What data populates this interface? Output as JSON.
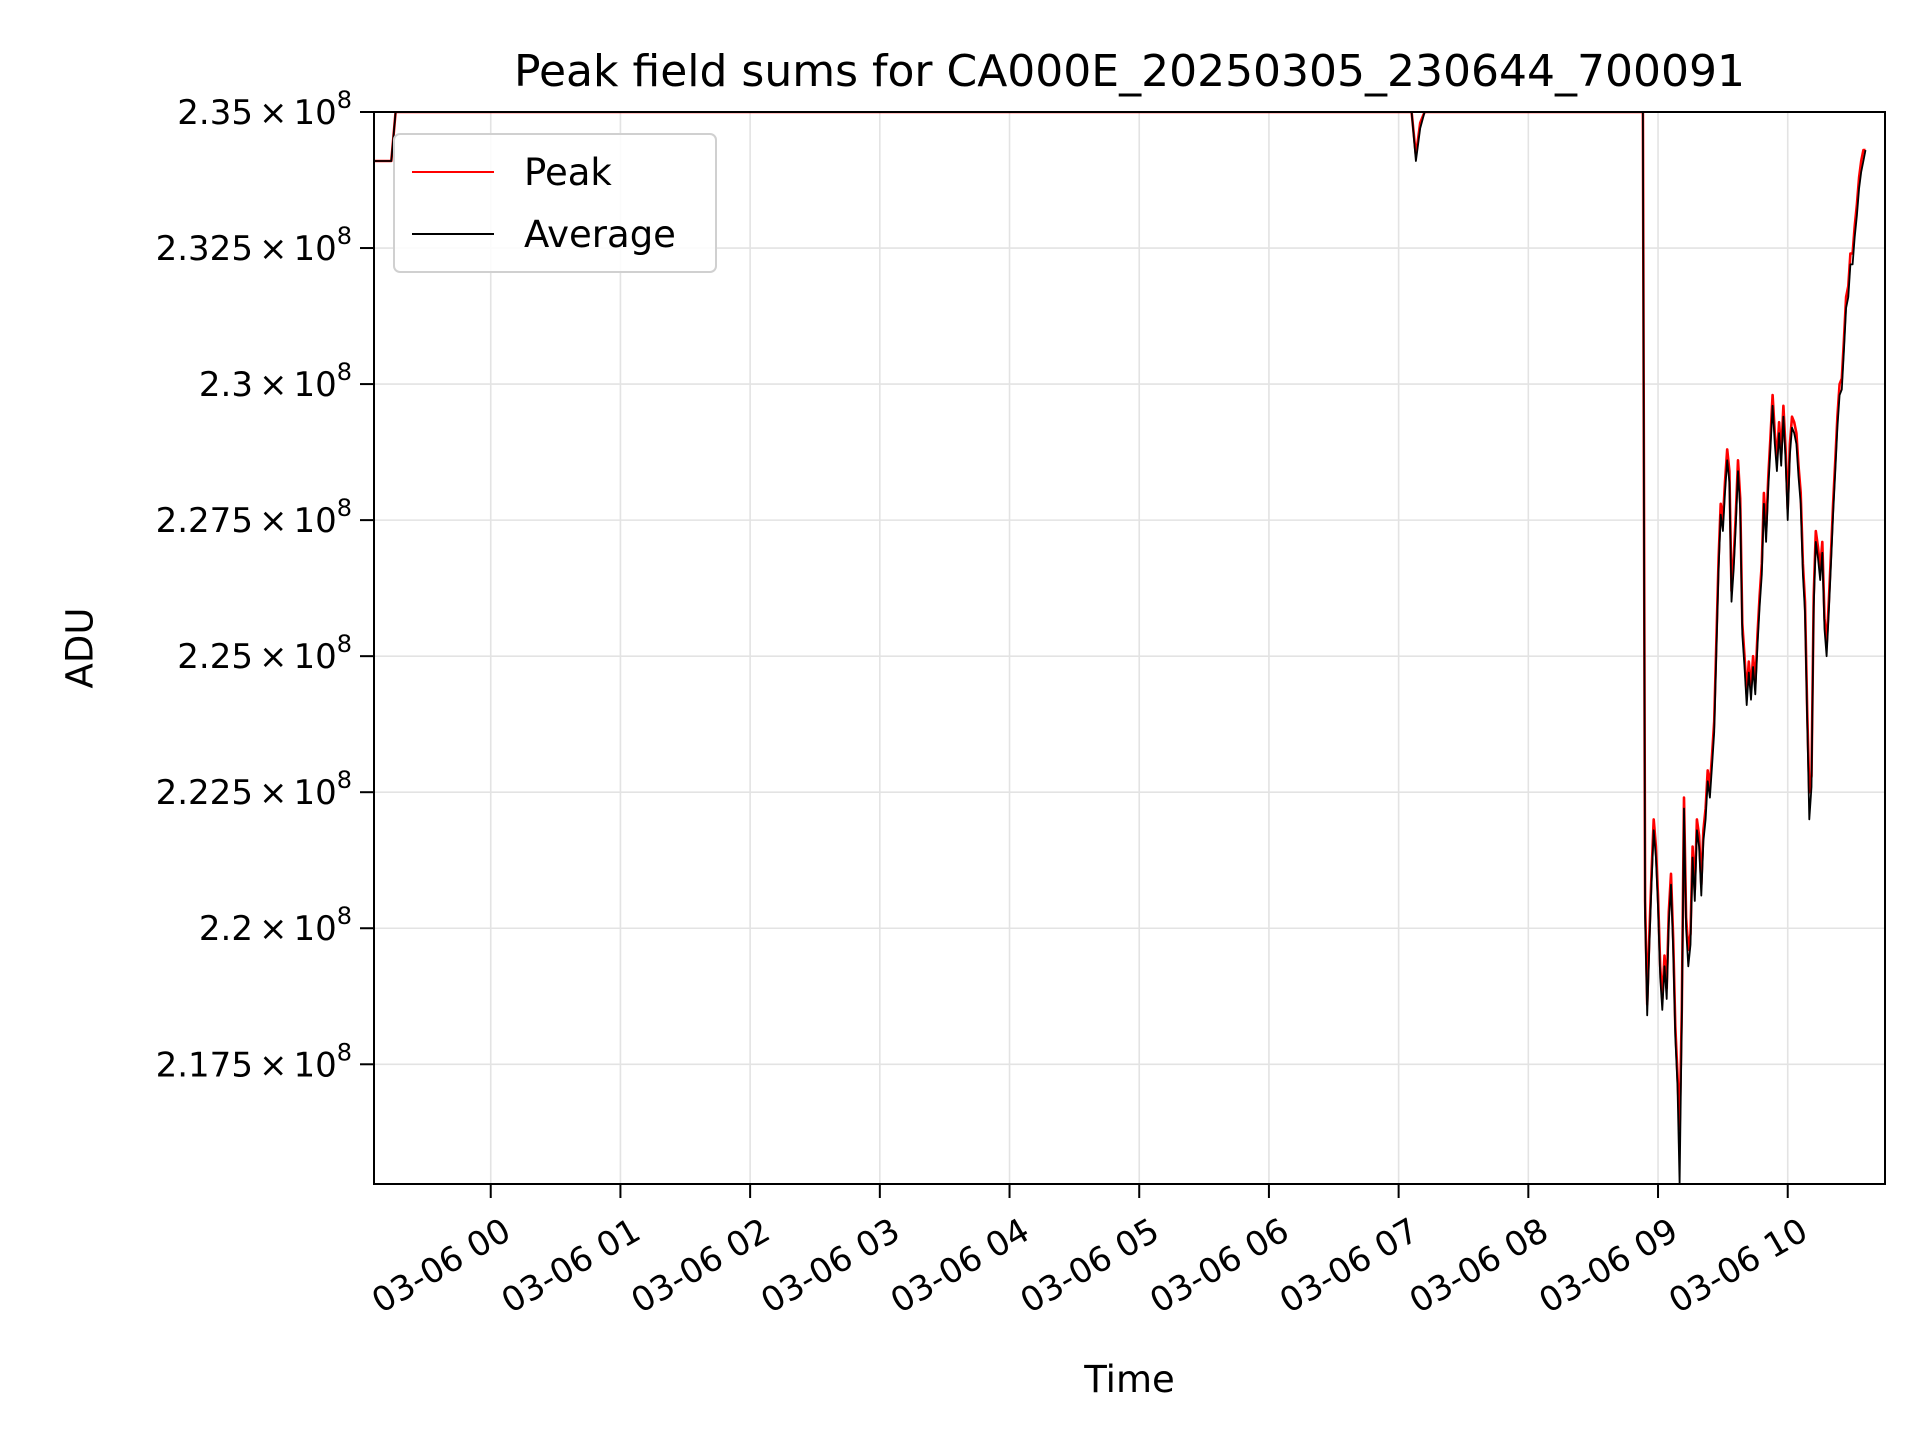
{
  "chart_data": {
    "type": "line",
    "title": "Peak field sums for CA000E_20250305_230644_700091",
    "xlabel": "Time",
    "ylabel": "ADU",
    "x_type": "time",
    "xlim": [
      "2025-03-05 23:06",
      "2025-03-06 10:45"
    ],
    "ylim": [
      215300000,
      235000000
    ],
    "grid": true,
    "legend_position": "top-left",
    "x_ticks": [
      {
        "value": "2025-03-06 00:00",
        "label": "03-06 00"
      },
      {
        "value": "2025-03-06 01:00",
        "label": "03-06 01"
      },
      {
        "value": "2025-03-06 02:00",
        "label": "03-06 02"
      },
      {
        "value": "2025-03-06 03:00",
        "label": "03-06 03"
      },
      {
        "value": "2025-03-06 04:00",
        "label": "03-06 04"
      },
      {
        "value": "2025-03-06 05:00",
        "label": "03-06 05"
      },
      {
        "value": "2025-03-06 06:00",
        "label": "03-06 06"
      },
      {
        "value": "2025-03-06 07:00",
        "label": "03-06 07"
      },
      {
        "value": "2025-03-06 08:00",
        "label": "03-06 08"
      },
      {
        "value": "2025-03-06 09:00",
        "label": "03-06 09"
      },
      {
        "value": "2025-03-06 10:00",
        "label": "03-06 10"
      }
    ],
    "y_ticks": [
      {
        "value": 217500000,
        "mantissa": "2.175"
      },
      {
        "value": 220000000,
        "mantissa": "2.2"
      },
      {
        "value": 222500000,
        "mantissa": "2.225"
      },
      {
        "value": 225000000,
        "mantissa": "2.25"
      },
      {
        "value": 227500000,
        "mantissa": "2.275"
      },
      {
        "value": 230000000,
        "mantissa": "2.3"
      },
      {
        "value": 232500000,
        "mantissa": "2.325"
      },
      {
        "value": 235000000,
        "mantissa": "2.35"
      }
    ],
    "y_tick_suffix": {
      "times": "×",
      "base": "10",
      "exponent": "8"
    },
    "series": [
      {
        "name": "Peak",
        "color": "#ff0000",
        "points": [
          [
            "2025-03-05 23:06",
            234100000
          ],
          [
            "2025-03-05 23:14",
            234100000
          ],
          [
            "2025-03-05 23:16",
            235000000
          ],
          [
            "2025-03-06 06:59",
            235000000
          ],
          [
            "2025-03-06 07:06",
            235000000
          ],
          [
            "2025-03-06 07:08",
            234200000
          ],
          [
            "2025-03-06 07:10",
            234800000
          ],
          [
            "2025-03-06 07:12",
            235000000
          ],
          [
            "2025-03-06 08:53",
            235000000
          ],
          [
            "2025-03-06 08:54",
            220500000
          ],
          [
            "2025-03-06 08:55",
            218600000
          ],
          [
            "2025-03-06 08:56",
            219900000
          ],
          [
            "2025-03-06 08:57",
            221000000
          ],
          [
            "2025-03-06 08:58",
            222000000
          ],
          [
            "2025-03-06 08:59",
            221500000
          ],
          [
            "2025-03-06 09:00",
            220600000
          ],
          [
            "2025-03-06 09:01",
            219300000
          ],
          [
            "2025-03-06 09:02",
            218700000
          ],
          [
            "2025-03-06 09:03",
            219500000
          ],
          [
            "2025-03-06 09:04",
            218900000
          ],
          [
            "2025-03-06 09:05",
            220300000
          ],
          [
            "2025-03-06 09:06",
            221000000
          ],
          [
            "2025-03-06 09:07",
            219800000
          ],
          [
            "2025-03-06 09:08",
            218200000
          ],
          [
            "2025-03-06 09:09",
            217300000
          ],
          [
            "2025-03-06 09:10",
            216300000
          ],
          [
            "2025-03-06 09:11",
            218500000
          ],
          [
            "2025-03-06 09:12",
            222400000
          ],
          [
            "2025-03-06 09:13",
            220200000
          ],
          [
            "2025-03-06 09:14",
            219600000
          ],
          [
            "2025-03-06 09:15",
            219900000
          ],
          [
            "2025-03-06 09:16",
            221500000
          ],
          [
            "2025-03-06 09:17",
            220700000
          ],
          [
            "2025-03-06 09:18",
            222000000
          ],
          [
            "2025-03-06 09:19",
            221700000
          ],
          [
            "2025-03-06 09:20",
            220800000
          ],
          [
            "2025-03-06 09:21",
            221800000
          ],
          [
            "2025-03-06 09:22",
            222200000
          ],
          [
            "2025-03-06 09:23",
            222900000
          ],
          [
            "2025-03-06 09:24",
            222600000
          ],
          [
            "2025-03-06 09:25",
            223200000
          ],
          [
            "2025-03-06 09:26",
            223800000
          ],
          [
            "2025-03-06 09:27",
            225300000
          ],
          [
            "2025-03-06 09:28",
            226800000
          ],
          [
            "2025-03-06 09:29",
            227800000
          ],
          [
            "2025-03-06 09:30",
            227500000
          ],
          [
            "2025-03-06 09:31",
            228200000
          ],
          [
            "2025-03-06 09:32",
            228800000
          ],
          [
            "2025-03-06 09:33",
            228400000
          ],
          [
            "2025-03-06 09:34",
            226200000
          ],
          [
            "2025-03-06 09:35",
            226800000
          ],
          [
            "2025-03-06 09:36",
            227600000
          ],
          [
            "2025-03-06 09:37",
            228600000
          ],
          [
            "2025-03-06 09:38",
            227900000
          ],
          [
            "2025-03-06 09:39",
            225600000
          ],
          [
            "2025-03-06 09:40",
            225000000
          ],
          [
            "2025-03-06 09:41",
            224300000
          ],
          [
            "2025-03-06 09:42",
            224900000
          ],
          [
            "2025-03-06 09:43",
            224400000
          ],
          [
            "2025-03-06 09:44",
            225000000
          ],
          [
            "2025-03-06 09:45",
            224500000
          ],
          [
            "2025-03-06 09:46",
            225400000
          ],
          [
            "2025-03-06 09:47",
            226100000
          ],
          [
            "2025-03-06 09:48",
            226700000
          ],
          [
            "2025-03-06 09:49",
            228000000
          ],
          [
            "2025-03-06 09:50",
            227300000
          ],
          [
            "2025-03-06 09:51",
            228300000
          ],
          [
            "2025-03-06 09:52",
            229000000
          ],
          [
            "2025-03-06 09:53",
            229800000
          ],
          [
            "2025-03-06 09:54",
            229100000
          ],
          [
            "2025-03-06 09:55",
            228600000
          ],
          [
            "2025-03-06 09:56",
            229300000
          ],
          [
            "2025-03-06 09:57",
            228700000
          ],
          [
            "2025-03-06 09:58",
            229600000
          ],
          [
            "2025-03-06 09:59",
            228800000
          ],
          [
            "2025-03-06 10:00",
            227700000
          ],
          [
            "2025-03-06 10:01",
            228900000
          ],
          [
            "2025-03-06 10:02",
            229400000
          ],
          [
            "2025-03-06 10:03",
            229300000
          ],
          [
            "2025-03-06 10:04",
            229100000
          ],
          [
            "2025-03-06 10:05",
            228500000
          ],
          [
            "2025-03-06 10:06",
            228000000
          ],
          [
            "2025-03-06 10:07",
            226700000
          ],
          [
            "2025-03-06 10:08",
            226000000
          ],
          [
            "2025-03-06 10:09",
            224000000
          ],
          [
            "2025-03-06 10:10",
            222500000
          ],
          [
            "2025-03-06 10:11",
            222800000
          ],
          [
            "2025-03-06 10:12",
            226100000
          ],
          [
            "2025-03-06 10:13",
            227300000
          ],
          [
            "2025-03-06 10:14",
            227000000
          ],
          [
            "2025-03-06 10:15",
            226600000
          ],
          [
            "2025-03-06 10:16",
            227100000
          ],
          [
            "2025-03-06 10:17",
            225700000
          ],
          [
            "2025-03-06 10:18",
            225200000
          ],
          [
            "2025-03-06 10:19",
            226000000
          ],
          [
            "2025-03-06 10:20",
            226900000
          ],
          [
            "2025-03-06 10:21",
            227800000
          ],
          [
            "2025-03-06 10:22",
            228600000
          ],
          [
            "2025-03-06 10:23",
            229400000
          ],
          [
            "2025-03-06 10:24",
            230000000
          ],
          [
            "2025-03-06 10:25",
            230100000
          ],
          [
            "2025-03-06 10:26",
            230800000
          ],
          [
            "2025-03-06 10:27",
            231600000
          ],
          [
            "2025-03-06 10:28",
            231800000
          ],
          [
            "2025-03-06 10:29",
            232400000
          ],
          [
            "2025-03-06 10:30",
            232400000
          ],
          [
            "2025-03-06 10:31",
            232900000
          ],
          [
            "2025-03-06 10:32",
            233300000
          ],
          [
            "2025-03-06 10:33",
            233800000
          ],
          [
            "2025-03-06 10:34",
            234100000
          ],
          [
            "2025-03-06 10:35",
            234300000
          ],
          [
            "2025-03-06 10:36",
            234300000
          ]
        ]
      },
      {
        "name": "Average",
        "color": "#000000",
        "points": [
          [
            "2025-03-05 23:06",
            234100000
          ],
          [
            "2025-03-05 23:14",
            234100000
          ],
          [
            "2025-03-05 23:16",
            235000000
          ],
          [
            "2025-03-06 06:59",
            235000000
          ],
          [
            "2025-03-06 07:06",
            235000000
          ],
          [
            "2025-03-06 07:08",
            234100000
          ],
          [
            "2025-03-06 07:10",
            234700000
          ],
          [
            "2025-03-06 07:12",
            235000000
          ],
          [
            "2025-03-06 08:53",
            235000000
          ],
          [
            "2025-03-06 08:54",
            220200000
          ],
          [
            "2025-03-06 08:55",
            218400000
          ],
          [
            "2025-03-06 08:56",
            219700000
          ],
          [
            "2025-03-06 08:57",
            220800000
          ],
          [
            "2025-03-06 08:58",
            221800000
          ],
          [
            "2025-03-06 08:59",
            221300000
          ],
          [
            "2025-03-06 09:00",
            220400000
          ],
          [
            "2025-03-06 09:01",
            219100000
          ],
          [
            "2025-03-06 09:02",
            218500000
          ],
          [
            "2025-03-06 09:03",
            219300000
          ],
          [
            "2025-03-06 09:04",
            218700000
          ],
          [
            "2025-03-06 09:05",
            220100000
          ],
          [
            "2025-03-06 09:06",
            220800000
          ],
          [
            "2025-03-06 09:07",
            219600000
          ],
          [
            "2025-03-06 09:08",
            218000000
          ],
          [
            "2025-03-06 09:09",
            217100000
          ],
          [
            "2025-03-06 09:10",
            215300000
          ],
          [
            "2025-03-06 09:11",
            218300000
          ],
          [
            "2025-03-06 09:12",
            222200000
          ],
          [
            "2025-03-06 09:13",
            220000000
          ],
          [
            "2025-03-06 09:14",
            219300000
          ],
          [
            "2025-03-06 09:15",
            219700000
          ],
          [
            "2025-03-06 09:16",
            221300000
          ],
          [
            "2025-03-06 09:17",
            220500000
          ],
          [
            "2025-03-06 09:18",
            221800000
          ],
          [
            "2025-03-06 09:19",
            221500000
          ],
          [
            "2025-03-06 09:20",
            220600000
          ],
          [
            "2025-03-06 09:21",
            221600000
          ],
          [
            "2025-03-06 09:22",
            222000000
          ],
          [
            "2025-03-06 09:23",
            222700000
          ],
          [
            "2025-03-06 09:24",
            222400000
          ],
          [
            "2025-03-06 09:25",
            223000000
          ],
          [
            "2025-03-06 09:26",
            223600000
          ],
          [
            "2025-03-06 09:27",
            225100000
          ],
          [
            "2025-03-06 09:28",
            226600000
          ],
          [
            "2025-03-06 09:29",
            227600000
          ],
          [
            "2025-03-06 09:30",
            227300000
          ],
          [
            "2025-03-06 09:31",
            228000000
          ],
          [
            "2025-03-06 09:32",
            228600000
          ],
          [
            "2025-03-06 09:33",
            228200000
          ],
          [
            "2025-03-06 09:34",
            226000000
          ],
          [
            "2025-03-06 09:35",
            226600000
          ],
          [
            "2025-03-06 09:36",
            227400000
          ],
          [
            "2025-03-06 09:37",
            228400000
          ],
          [
            "2025-03-06 09:38",
            227700000
          ],
          [
            "2025-03-06 09:39",
            225400000
          ],
          [
            "2025-03-06 09:40",
            224800000
          ],
          [
            "2025-03-06 09:41",
            224100000
          ],
          [
            "2025-03-06 09:42",
            224700000
          ],
          [
            "2025-03-06 09:43",
            224200000
          ],
          [
            "2025-03-06 09:44",
            224800000
          ],
          [
            "2025-03-06 09:45",
            224300000
          ],
          [
            "2025-03-06 09:46",
            225200000
          ],
          [
            "2025-03-06 09:47",
            225900000
          ],
          [
            "2025-03-06 09:48",
            226500000
          ],
          [
            "2025-03-06 09:49",
            227800000
          ],
          [
            "2025-03-06 09:50",
            227100000
          ],
          [
            "2025-03-06 09:51",
            228100000
          ],
          [
            "2025-03-06 09:52",
            228800000
          ],
          [
            "2025-03-06 09:53",
            229600000
          ],
          [
            "2025-03-06 09:54",
            228900000
          ],
          [
            "2025-03-06 09:55",
            228400000
          ],
          [
            "2025-03-06 09:56",
            229100000
          ],
          [
            "2025-03-06 09:57",
            228500000
          ],
          [
            "2025-03-06 09:58",
            229400000
          ],
          [
            "2025-03-06 09:59",
            228600000
          ],
          [
            "2025-03-06 10:00",
            227500000
          ],
          [
            "2025-03-06 10:01",
            228700000
          ],
          [
            "2025-03-06 10:02",
            229200000
          ],
          [
            "2025-03-06 10:03",
            229100000
          ],
          [
            "2025-03-06 10:04",
            228900000
          ],
          [
            "2025-03-06 10:05",
            228300000
          ],
          [
            "2025-03-06 10:06",
            227800000
          ],
          [
            "2025-03-06 10:07",
            226500000
          ],
          [
            "2025-03-06 10:08",
            225800000
          ],
          [
            "2025-03-06 10:09",
            223800000
          ],
          [
            "2025-03-06 10:10",
            222000000
          ],
          [
            "2025-03-06 10:11",
            222600000
          ],
          [
            "2025-03-06 10:12",
            225900000
          ],
          [
            "2025-03-06 10:13",
            227100000
          ],
          [
            "2025-03-06 10:14",
            226800000
          ],
          [
            "2025-03-06 10:15",
            226400000
          ],
          [
            "2025-03-06 10:16",
            226900000
          ],
          [
            "2025-03-06 10:17",
            225500000
          ],
          [
            "2025-03-06 10:18",
            225000000
          ],
          [
            "2025-03-06 10:19",
            225800000
          ],
          [
            "2025-03-06 10:20",
            226700000
          ],
          [
            "2025-03-06 10:21",
            227600000
          ],
          [
            "2025-03-06 10:22",
            228400000
          ],
          [
            "2025-03-06 10:23",
            229200000
          ],
          [
            "2025-03-06 10:24",
            229800000
          ],
          [
            "2025-03-06 10:25",
            229900000
          ],
          [
            "2025-03-06 10:26",
            230600000
          ],
          [
            "2025-03-06 10:27",
            231400000
          ],
          [
            "2025-03-06 10:28",
            231600000
          ],
          [
            "2025-03-06 10:29",
            232200000
          ],
          [
            "2025-03-06 10:30",
            232200000
          ],
          [
            "2025-03-06 10:31",
            232700000
          ],
          [
            "2025-03-06 10:32",
            233100000
          ],
          [
            "2025-03-06 10:33",
            233600000
          ],
          [
            "2025-03-06 10:34",
            233900000
          ],
          [
            "2025-03-06 10:35",
            234100000
          ],
          [
            "2025-03-06 10:36",
            234300000
          ]
        ]
      }
    ]
  }
}
